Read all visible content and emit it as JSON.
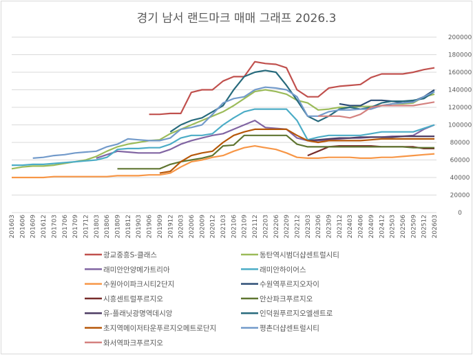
{
  "chart_data": {
    "type": "line",
    "title": "경기 남서 랜드마크 매매 그래프 2026.3",
    "xlabel": "",
    "ylabel": "",
    "ylim": [
      0,
      200000
    ],
    "yticks": [
      0,
      20000,
      40000,
      60000,
      80000,
      100000,
      120000,
      140000,
      160000,
      180000,
      200000
    ],
    "grid": true,
    "legend_position": "bottom",
    "categories": [
      "201603",
      "201606",
      "201609",
      "201612",
      "201703",
      "201706",
      "201709",
      "201712",
      "201803",
      "201806",
      "201809",
      "201812",
      "201903",
      "201906",
      "201909",
      "201912",
      "202003",
      "202006",
      "202009",
      "202012",
      "202103",
      "202106",
      "202109",
      "202112",
      "202203",
      "202206",
      "202209",
      "202212",
      "202303",
      "202306",
      "202309",
      "202312",
      "202403",
      "202406",
      "202409",
      "202412",
      "202503",
      "202506",
      "202509",
      "202512",
      "202603"
    ],
    "series": [
      {
        "name": "광교중흥S-클래스",
        "color": "#c0504d",
        "values": [
          null,
          null,
          null,
          null,
          null,
          null,
          null,
          null,
          null,
          null,
          null,
          null,
          null,
          112000,
          112000,
          113000,
          113000,
          137000,
          140000,
          140000,
          150000,
          155000,
          155000,
          172000,
          170000,
          169000,
          165000,
          140000,
          132000,
          132000,
          142000,
          144000,
          145000,
          146000,
          154000,
          158000,
          158000,
          158000,
          160000,
          163000,
          165000
        ]
      },
      {
        "name": "동탄역시범더샵센트럴시티",
        "color": "#9bbb59",
        "values": [
          50000,
          52000,
          53000,
          53000,
          54000,
          56000,
          58000,
          60000,
          64000,
          70000,
          75000,
          78000,
          80000,
          82000,
          83000,
          90000,
          95000,
          100000,
          105000,
          110000,
          115000,
          122000,
          130000,
          138000,
          140000,
          138000,
          135000,
          128000,
          125000,
          117000,
          118000,
          120000,
          120000,
          121000,
          121000,
          122000,
          124000,
          124000,
          125000,
          132000,
          135000
        ]
      },
      {
        "name": "래미안안양메가트리아",
        "color": "#8064a2",
        "values": [
          null,
          null,
          null,
          null,
          null,
          null,
          null,
          null,
          62000,
          66000,
          70000,
          69000,
          68000,
          68000,
          68000,
          72000,
          78000,
          82000,
          85000,
          88000,
          90000,
          95000,
          100000,
          105000,
          97000,
          96000,
          95000,
          85000,
          82000,
          82000,
          83000,
          84000,
          85000,
          85000,
          86000,
          86000,
          87000,
          87000,
          88000,
          95000,
          100000
        ]
      },
      {
        "name": "래미안하이어스",
        "color": "#4bacc6",
        "values": [
          54000,
          54000,
          55000,
          55000,
          56000,
          57000,
          58000,
          59000,
          60000,
          63000,
          72000,
          73000,
          73000,
          74000,
          74000,
          78000,
          85000,
          88000,
          88000,
          90000,
          100000,
          108000,
          115000,
          118000,
          118000,
          118000,
          118000,
          105000,
          83000,
          86000,
          88000,
          88000,
          88000,
          88000,
          90000,
          92000,
          92000,
          92000,
          92000,
          96000,
          100000
        ]
      },
      {
        "name": "수원아이파크시티2단지",
        "color": "#f79646",
        "values": [
          40000,
          40000,
          40000,
          40000,
          41000,
          41000,
          41000,
          41000,
          41000,
          41000,
          42000,
          42000,
          42000,
          43000,
          43000,
          45000,
          52000,
          58000,
          60000,
          63000,
          65000,
          70000,
          74000,
          76000,
          74000,
          72000,
          68000,
          63000,
          62000,
          62000,
          63000,
          63000,
          63000,
          62000,
          62000,
          63000,
          63000,
          64000,
          65000,
          66000,
          67000
        ]
      },
      {
        "name": "수원역푸르지오자이",
        "color": "#2c4d75",
        "values": [
          null,
          null,
          null,
          null,
          null,
          null,
          null,
          null,
          null,
          null,
          null,
          null,
          null,
          null,
          null,
          null,
          null,
          null,
          null,
          null,
          null,
          null,
          null,
          null,
          null,
          null,
          null,
          null,
          null,
          null,
          null,
          124000,
          122000,
          122000,
          128000,
          128000,
          127000,
          125000,
          127000,
          132000,
          140000
        ]
      },
      {
        "name": "시흥센트럴푸르지오",
        "color": "#772c2a",
        "values": [
          null,
          null,
          null,
          null,
          null,
          null,
          null,
          null,
          null,
          null,
          null,
          null,
          null,
          null,
          null,
          null,
          null,
          null,
          null,
          null,
          null,
          null,
          null,
          null,
          null,
          null,
          null,
          null,
          65000,
          70000,
          75000,
          76000,
          76000,
          76000,
          76000,
          75000,
          75000,
          75000,
          75000,
          73000,
          73000
        ]
      },
      {
        "name": "안산파크푸르지오",
        "color": "#5f7530",
        "values": [
          null,
          null,
          null,
          null,
          null,
          null,
          null,
          null,
          null,
          null,
          50000,
          50000,
          50000,
          50000,
          50000,
          55000,
          58000,
          60000,
          62000,
          65000,
          76000,
          77000,
          88000,
          88000,
          88000,
          88000,
          88000,
          78000,
          75000,
          75000,
          75000,
          75000,
          75000,
          75000,
          75000,
          75000,
          75000,
          75000,
          74000,
          74000,
          74000
        ]
      },
      {
        "name": "유-플래닛광명역데시앙",
        "color": "#4d3b62",
        "values": [
          null,
          null,
          null,
          null,
          null,
          null,
          null,
          null,
          null,
          null,
          null,
          null,
          null,
          null,
          null,
          null,
          null,
          null,
          null,
          null,
          null,
          null,
          null,
          null,
          null,
          null,
          null,
          null,
          82000,
          83000,
          84000,
          85000,
          85000,
          86000,
          86000,
          86000,
          86000,
          87000,
          87000,
          87000,
          87000
        ]
      },
      {
        "name": "인덕원푸르지오엘센트로",
        "color": "#276a7c",
        "values": [
          null,
          null,
          null,
          null,
          null,
          null,
          null,
          null,
          null,
          null,
          null,
          null,
          null,
          null,
          null,
          92000,
          100000,
          105000,
          108000,
          115000,
          122000,
          140000,
          155000,
          160000,
          162000,
          160000,
          145000,
          128000,
          110000,
          104000,
          110000,
          118000,
          120000,
          118000,
          120000,
          125000,
          127000,
          127000,
          128000,
          130000,
          138000
        ]
      },
      {
        "name": "초지역메이저타운푸르지오메트로단지",
        "color": "#b65708",
        "values": [
          null,
          null,
          null,
          null,
          null,
          null,
          null,
          null,
          null,
          null,
          null,
          null,
          null,
          null,
          45000,
          47000,
          58000,
          65000,
          68000,
          70000,
          80000,
          88000,
          92000,
          95000,
          95000,
          95000,
          95000,
          88000,
          82000,
          80000,
          82000,
          82000,
          82000,
          82000,
          83000,
          84000,
          84000,
          84000,
          84000,
          84000,
          84000
        ]
      },
      {
        "name": "평촌더샵센트럴시티",
        "color": "#729aca",
        "values": [
          null,
          null,
          62000,
          63000,
          65000,
          66000,
          68000,
          69000,
          70000,
          75000,
          78000,
          84000,
          83000,
          82000,
          82000,
          85000,
          95000,
          97000,
          100000,
          112000,
          125000,
          130000,
          132000,
          140000,
          143000,
          142000,
          140000,
          132000,
          110000,
          110000,
          115000,
          117000,
          117000,
          118000,
          118000,
          122000,
          124000,
          125000,
          126000,
          132000,
          138000
        ]
      },
      {
        "name": "화서역파크푸르지오",
        "color": "#d4817f",
        "values": [
          null,
          null,
          null,
          null,
          null,
          null,
          null,
          null,
          null,
          null,
          null,
          null,
          null,
          null,
          null,
          null,
          null,
          null,
          null,
          null,
          null,
          null,
          null,
          null,
          null,
          null,
          null,
          null,
          null,
          110000,
          110000,
          110000,
          108000,
          112000,
          120000,
          122000,
          122000,
          122000,
          122000,
          124000,
          126000
        ]
      }
    ]
  }
}
